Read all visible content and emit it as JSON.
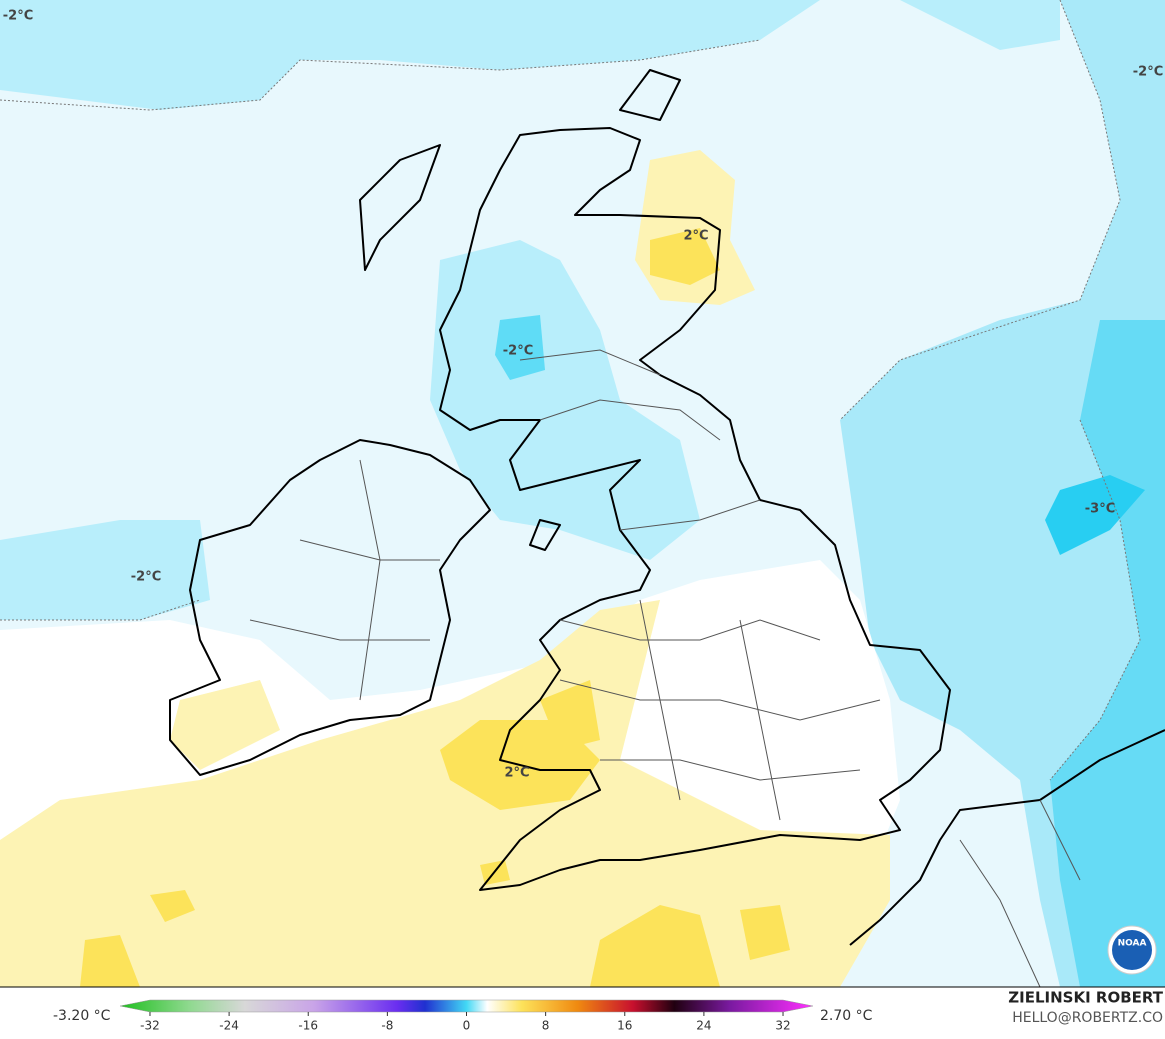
{
  "map": {
    "labels": [
      "-2°C",
      "-2°C",
      "2°C",
      "-2°C",
      "-2°C",
      "-3°C",
      "2°C"
    ]
  },
  "logo": "NOAA",
  "colorbar": {
    "min_label": "-3.20 °C",
    "max_label": "2.70 °C",
    "lim": [
      -35,
      35
    ],
    "ticks": [
      -32,
      -24,
      -16,
      -8,
      0,
      8,
      16,
      24,
      32
    ]
  },
  "credit": {
    "name": "ZIELINSKI ROBERT",
    "contact": "HELLO@ROBERTZ.CO"
  }
}
